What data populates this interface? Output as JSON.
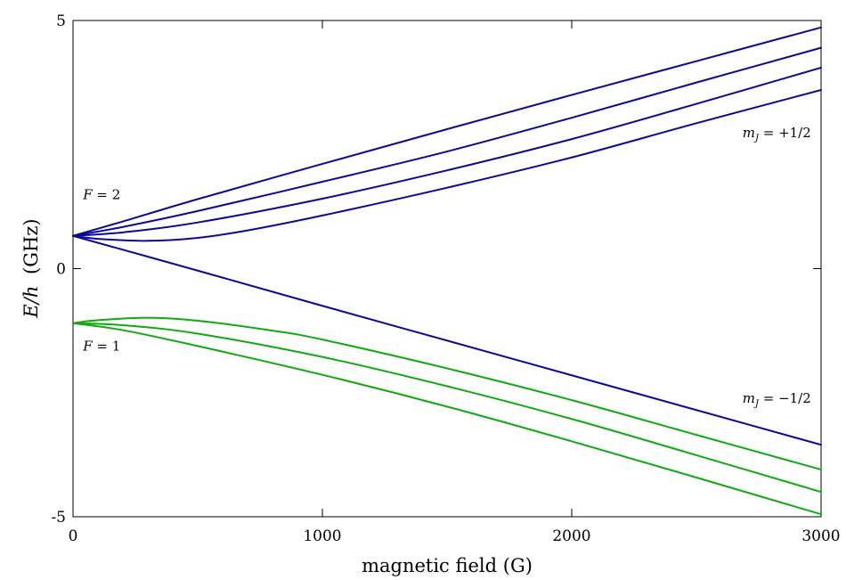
{
  "chart_data": {
    "type": "line",
    "xlabel": "magnetic field (G)",
    "ylabel_italic": "E/h",
    "ylabel_unit": "(GHz)",
    "xlim": [
      0,
      3000
    ],
    "ylim": [
      -5,
      5
    ],
    "xticks": [
      0,
      1000,
      2000,
      3000
    ],
    "xtick_labels": [
      "0",
      "1000",
      "2000",
      "3000"
    ],
    "yticks": [
      -5,
      0,
      5
    ],
    "ytick_labels": [
      "-5",
      "0",
      "5"
    ],
    "grid": false,
    "series": [
      {
        "color": "#0a0a96",
        "x": [
          0,
          200,
          500,
          1000,
          1500,
          2000,
          2500,
          3000
        ],
        "y": [
          0.66,
          0.95,
          1.4,
          2.11,
          2.81,
          3.5,
          4.18,
          4.86
        ]
      },
      {
        "color": "#0a0a96",
        "x": [
          0,
          200,
          500,
          1000,
          1500,
          2000,
          2500,
          3000
        ],
        "y": [
          0.66,
          0.84,
          1.16,
          1.75,
          2.36,
          3.04,
          3.75,
          4.45
        ]
      },
      {
        "color": "#0a0a96",
        "x": [
          0,
          200,
          500,
          1000,
          1500,
          2000,
          2500,
          3000
        ],
        "y": [
          0.66,
          0.73,
          0.93,
          1.41,
          1.98,
          2.61,
          3.32,
          4.05
        ]
      },
      {
        "color": "#0a0a96",
        "x": [
          0,
          100,
          300,
          500,
          700,
          1000,
          1500,
          2000,
          2500,
          3000
        ],
        "y": [
          0.66,
          0.6,
          0.56,
          0.62,
          0.77,
          1.07,
          1.63,
          2.24,
          2.93,
          3.6
        ]
      },
      {
        "color": "#0a0a96",
        "x": [
          0,
          500,
          1000,
          1500,
          2000,
          2500,
          3000
        ],
        "y": [
          0.66,
          -0.04,
          -0.75,
          -1.45,
          -2.15,
          -2.85,
          -3.55
        ]
      },
      {
        "color": "#10aa10",
        "x": [
          0,
          100,
          300,
          500,
          800,
          1000,
          1500,
          2000,
          2500,
          3000
        ],
        "y": [
          -1.1,
          -1.04,
          -0.99,
          -1.05,
          -1.25,
          -1.43,
          -2.01,
          -2.65,
          -3.35,
          -4.05
        ]
      },
      {
        "color": "#10aa10",
        "x": [
          0,
          200,
          500,
          1000,
          1500,
          2000,
          2500,
          3000
        ],
        "y": [
          -1.1,
          -1.14,
          -1.31,
          -1.78,
          -2.37,
          -3.03,
          -3.76,
          -4.5
        ]
      },
      {
        "color": "#10aa10",
        "x": [
          0,
          200,
          500,
          1000,
          1500,
          2000,
          2500,
          3000
        ],
        "y": [
          -1.1,
          -1.24,
          -1.56,
          -2.14,
          -2.78,
          -3.48,
          -4.21,
          -4.95
        ]
      }
    ],
    "annotations": [
      {
        "var": "F",
        "rest": " = 2",
        "x": 40,
        "y": 1.4,
        "anchor": "start"
      },
      {
        "var": "F",
        "rest": " = 1",
        "x": 40,
        "y": -1.65,
        "anchor": "start"
      },
      {
        "var": "m",
        "sub": "J",
        "rest": " = +1/2",
        "x": 2960,
        "y": 2.65,
        "anchor": "end"
      },
      {
        "var": "m",
        "sub": "J",
        "rest": " = −1/2",
        "x": 2960,
        "y": -2.7,
        "anchor": "end"
      }
    ]
  }
}
